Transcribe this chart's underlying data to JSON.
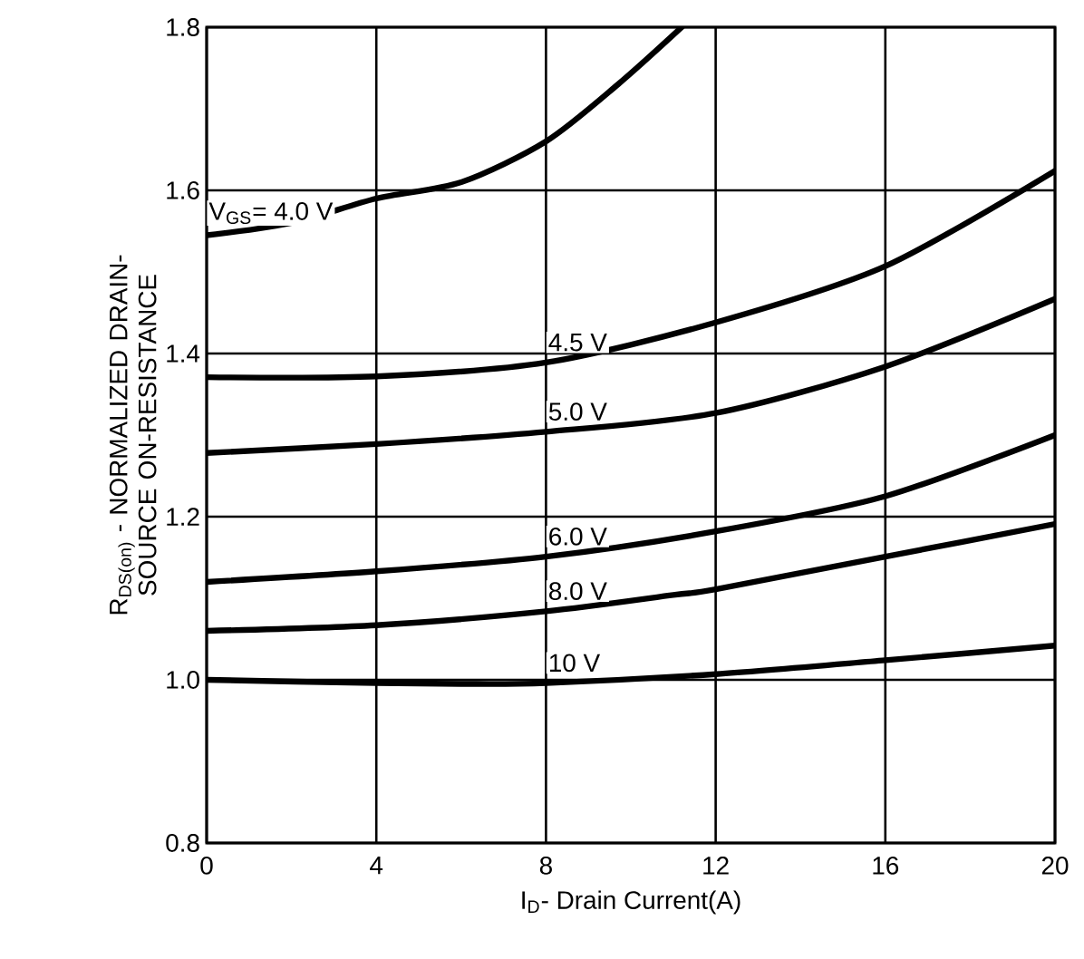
{
  "chart_data": {
    "type": "line",
    "xlabel": "I$_{D}$- Drain Current(A)",
    "ylabel": "R$_{DS(on)}$ - NORMALIZED DRAIN-SOURCE ON-RESISTANCE",
    "xlim": [
      0,
      20
    ],
    "ylim": [
      0.8,
      1.8
    ],
    "xticks": [
      0,
      4,
      8,
      12,
      16,
      20
    ],
    "yticks": [
      0.8,
      {
        "value": 1.0,
        "label": "1.0"
      },
      1.2,
      1.4,
      1.6,
      1.8
    ],
    "grid": true,
    "marker": "none",
    "line_style": "solid",
    "series": [
      {
        "name": "V$_{GS}$= 4.0 V",
        "color": "#000000",
        "x": [
          0,
          2,
          4,
          6,
          8,
          9.7,
          11.2
        ],
        "values": [
          1.545,
          1.56,
          1.59,
          1.61,
          1.66,
          1.73,
          1.8
        ]
      },
      {
        "name": "4.5 V",
        "color": "#000000",
        "x": [
          0,
          4,
          8,
          12,
          16,
          20
        ],
        "values": [
          1.371,
          1.372,
          1.389,
          1.438,
          1.507,
          1.624
        ]
      },
      {
        "name": "5.0 V",
        "color": "#000000",
        "x": [
          0,
          4,
          8,
          12,
          16,
          20
        ],
        "values": [
          1.278,
          1.289,
          1.304,
          1.327,
          1.384,
          1.467
        ]
      },
      {
        "name": "6.0 V",
        "color": "#000000",
        "x": [
          0,
          4,
          8,
          12,
          16,
          20
        ],
        "values": [
          1.12,
          1.133,
          1.151,
          1.182,
          1.225,
          1.3
        ]
      },
      {
        "name": "8.0 V",
        "color": "#000000",
        "x": [
          0,
          4,
          8,
          11,
          12,
          16,
          20
        ],
        "values": [
          1.06,
          1.067,
          1.084,
          1.104,
          1.111,
          1.151,
          1.191
        ]
      },
      {
        "name": "10 V",
        "color": "#000000",
        "x": [
          0,
          4,
          6,
          8,
          12,
          16,
          20
        ],
        "values": [
          1.0,
          0.996,
          0.995,
          0.996,
          1.007,
          1.024,
          1.042
        ]
      }
    ]
  }
}
